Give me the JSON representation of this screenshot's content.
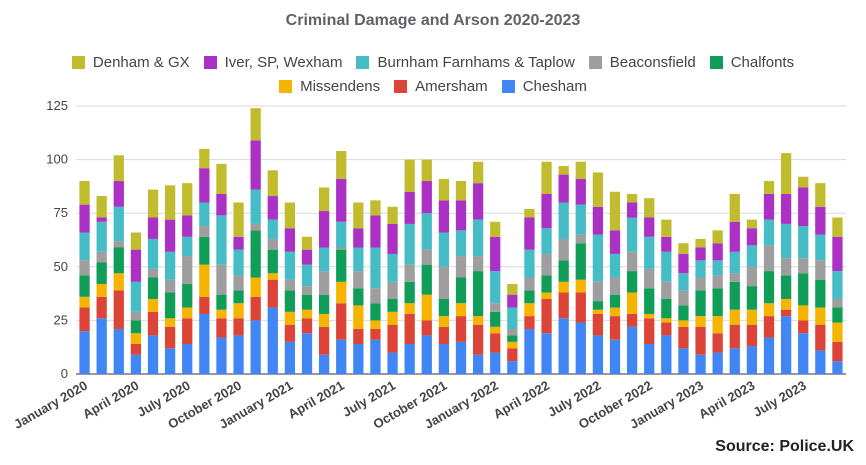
{
  "chart_data": {
    "type": "bar",
    "stacked": true,
    "title": "Criminal Damage and Arson  2020-2023",
    "source": "Source: Police.UK",
    "ylim": [
      0,
      125
    ],
    "yticks": [
      0,
      25,
      50,
      75,
      100,
      125
    ],
    "grid": true,
    "legend_position": "top",
    "categories": [
      "Jan 2020",
      "Feb 2020",
      "Mar 2020",
      "Apr 2020",
      "May 2020",
      "Jun 2020",
      "Jul 2020",
      "Aug 2020",
      "Sep 2020",
      "Oct 2020",
      "Nov 2020",
      "Dec 2020",
      "Jan 2021",
      "Feb 2021",
      "Mar 2021",
      "Apr 2021",
      "May 2021",
      "Jun 2021",
      "Jul 2021",
      "Aug 2021",
      "Sep 2021",
      "Oct 2021",
      "Nov 2021",
      "Dec 2021",
      "Jan 2022",
      "Feb 2022",
      "Mar 2022",
      "Apr 2022",
      "May 2022",
      "Jun 2022",
      "Jul 2022",
      "Aug 2022",
      "Sep 2022",
      "Oct 2022",
      "Nov 2022",
      "Dec 2022",
      "Jan 2023",
      "Feb 2023",
      "Mar 2023",
      "Apr 2023",
      "May 2023",
      "Jun 2023",
      "Jul 2023",
      "Aug 2023",
      "Sep 2023"
    ],
    "x_tick_labels": [
      "January 2020",
      "April 2020",
      "July 2020",
      "October 2020",
      "January 2021",
      "April 2021",
      "July 2021",
      "October 2021",
      "January 2022",
      "April 2022",
      "July 2022",
      "October 2022",
      "January 2023",
      "April 2023",
      "July 2023"
    ],
    "x_tick_every": 3,
    "series": [
      {
        "name": "Chesham",
        "color": "#4285f4",
        "values": [
          20,
          26,
          21,
          9,
          18,
          12,
          14,
          28,
          17,
          18,
          25,
          31,
          15,
          19,
          9,
          16,
          14,
          16,
          10,
          14,
          18,
          14,
          15,
          9,
          10,
          6,
          21,
          19,
          26,
          24,
          18,
          16,
          22,
          14,
          18,
          12,
          9,
          10,
          12,
          13,
          17,
          27,
          19,
          11,
          6
        ]
      },
      {
        "name": "Amersham",
        "color": "#db4437",
        "values": [
          11,
          10,
          18,
          5,
          11,
          10,
          12,
          8,
          9,
          8,
          11,
          13,
          8,
          7,
          13,
          17,
          7,
          5,
          13,
          14,
          7,
          8,
          12,
          14,
          9,
          6,
          6,
          16,
          12,
          14,
          10,
          11,
          6,
          12,
          6,
          10,
          13,
          9,
          11,
          10,
          10,
          3,
          6,
          12,
          9
        ]
      },
      {
        "name": "Missendens",
        "color": "#f4b400",
        "values": [
          5,
          6,
          8,
          5,
          6,
          4,
          5,
          15,
          4,
          7,
          9,
          3,
          6,
          4,
          6,
          10,
          11,
          4,
          6,
          5,
          12,
          5,
          6,
          4,
          3,
          3,
          6,
          3,
          5,
          6,
          2,
          4,
          10,
          2,
          2,
          3,
          5,
          8,
          7,
          7,
          6,
          5,
          7,
          8,
          9
        ]
      },
      {
        "name": "Chalfonts",
        "color": "#0f9d58",
        "values": [
          10,
          10,
          12,
          6,
          10,
          12,
          11,
          13,
          7,
          6,
          22,
          11,
          10,
          7,
          9,
          15,
          8,
          8,
          6,
          10,
          14,
          8,
          12,
          21,
          7,
          3,
          6,
          8,
          10,
          17,
          4,
          6,
          10,
          12,
          9,
          7,
          12,
          13,
          13,
          11,
          15,
          11,
          15,
          13,
          7
        ]
      },
      {
        "name": "Beaconsfield",
        "color": "#9e9e9e",
        "values": [
          7,
          5,
          3,
          4,
          4,
          6,
          13,
          5,
          14,
          7,
          3,
          5,
          5,
          4,
          11,
          1,
          8,
          7,
          8,
          8,
          7,
          15,
          10,
          7,
          4,
          3,
          6,
          10,
          10,
          4,
          9,
          8,
          9,
          9,
          8,
          7,
          6,
          6,
          4,
          9,
          12,
          8,
          7,
          9,
          4
        ]
      },
      {
        "name": "Burnham Farnhams & Taplow",
        "color": "#46bdc6",
        "values": [
          13,
          14,
          16,
          14,
          14,
          13,
          9,
          11,
          23,
          12,
          16,
          9,
          13,
          10,
          11,
          12,
          11,
          19,
          13,
          19,
          17,
          16,
          12,
          17,
          15,
          10,
          13,
          12,
          17,
          14,
          22,
          11,
          16,
          15,
          14,
          8,
          8,
          7,
          10,
          10,
          12,
          16,
          15,
          12,
          13
        ]
      },
      {
        "name": "Iver, SP, Wexham",
        "color": "#ab30c4",
        "values": [
          13,
          2,
          12,
          15,
          10,
          15,
          10,
          16,
          10,
          6,
          23,
          11,
          11,
          7,
          17,
          20,
          9,
          15,
          14,
          15,
          15,
          15,
          14,
          17,
          16,
          6,
          15,
          16,
          13,
          12,
          13,
          11,
          7,
          9,
          7,
          9,
          6,
          8,
          14,
          8,
          12,
          14,
          18,
          13,
          16
        ]
      },
      {
        "name": "Denham & GX",
        "color": "#c0bc2d",
        "values": [
          11,
          10,
          12,
          8,
          13,
          16,
          15,
          9,
          14,
          16,
          15,
          12,
          12,
          6,
          11,
          13,
          12,
          7,
          8,
          15,
          10,
          10,
          9,
          10,
          7,
          5,
          4,
          15,
          4,
          8,
          16,
          18,
          4,
          9,
          8,
          5,
          4,
          6,
          13,
          4,
          6,
          19,
          5,
          11,
          9
        ]
      }
    ],
    "legend_rows": [
      [
        "Denham & GX",
        "Iver, SP, Wexham",
        "Burnham Farnhams & Taplow",
        "Beaconsfield",
        "Chalfonts"
      ],
      [
        "Missendens",
        "Amersham",
        "Chesham"
      ]
    ]
  }
}
